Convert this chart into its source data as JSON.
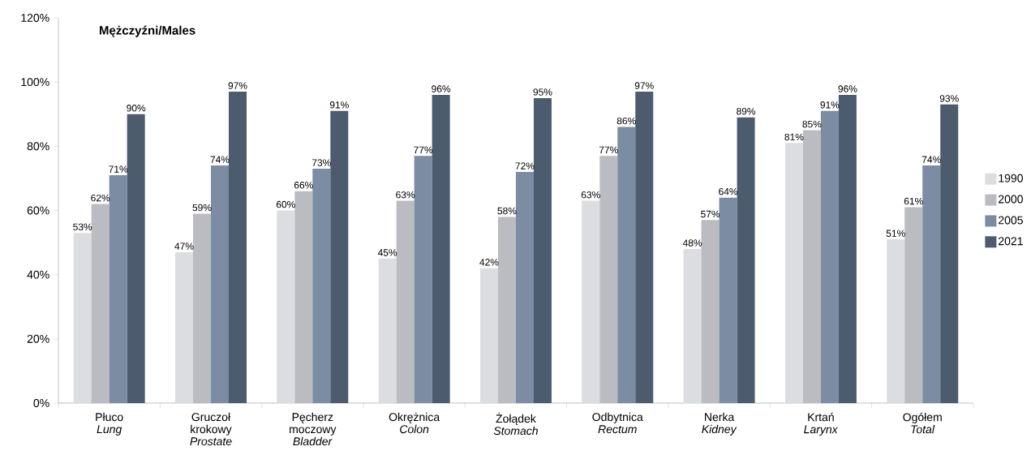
{
  "chart_data": {
    "type": "bar",
    "title": "Mężczyźni/Males",
    "categories": [
      "Płuco *Lung*",
      "Gruczoł krokowy *Prostate*",
      "Pęcherz moczowy *Bladder*",
      "Okrężnica *Colon*",
      "Żołądek *Stomach*",
      "Odbytnica *Rectum*",
      "Nerka *Kidney*",
      "Krtań *Larynx*",
      "Ogółem *Total*"
    ],
    "series": [
      {
        "name": "1990",
        "color": "#dcdde0",
        "values": [
          53,
          47,
          60,
          45,
          42,
          63,
          48,
          81,
          51
        ],
        "value_labels": [
          "53%",
          "47%",
          "60%",
          "45%",
          "42%",
          "63%",
          "48%",
          "81%",
          "51%"
        ]
      },
      {
        "name": "2000",
        "color": "#bbbcc1",
        "values": [
          62,
          59,
          66,
          63,
          58,
          77,
          57,
          85,
          61
        ],
        "value_labels": [
          "62%",
          "59%",
          "66%",
          "63%",
          "58%",
          "77%",
          "57%",
          "85%",
          "61%"
        ]
      },
      {
        "name": "2005",
        "color": "#7b8ca3",
        "values": [
          71,
          74,
          73,
          77,
          72,
          86,
          64,
          91,
          74
        ],
        "value_labels": [
          "71%",
          "74%",
          "73%",
          "77%",
          "72%",
          "86%",
          "64%",
          "91%",
          "74%"
        ]
      },
      {
        "name": "2021",
        "color": "#4d5b6e",
        "values": [
          90,
          97,
          91,
          96,
          95,
          97,
          89,
          96,
          93
        ],
        "value_labels": [
          "90%",
          "97%",
          "91%",
          "96%",
          "95%",
          "97%",
          "89%",
          "96%",
          "93%"
        ]
      }
    ],
    "ylim": [
      0,
      120
    ],
    "yticks": [
      {
        "value": 0,
        "label": "0%"
      },
      {
        "value": 20,
        "label": "20%"
      },
      {
        "value": 40,
        "label": "40%"
      },
      {
        "value": 60,
        "label": "60%"
      },
      {
        "value": 80,
        "label": "80%"
      },
      {
        "value": 100,
        "label": "100%"
      },
      {
        "value": 120,
        "label": "120%"
      }
    ],
    "legend": "right"
  }
}
